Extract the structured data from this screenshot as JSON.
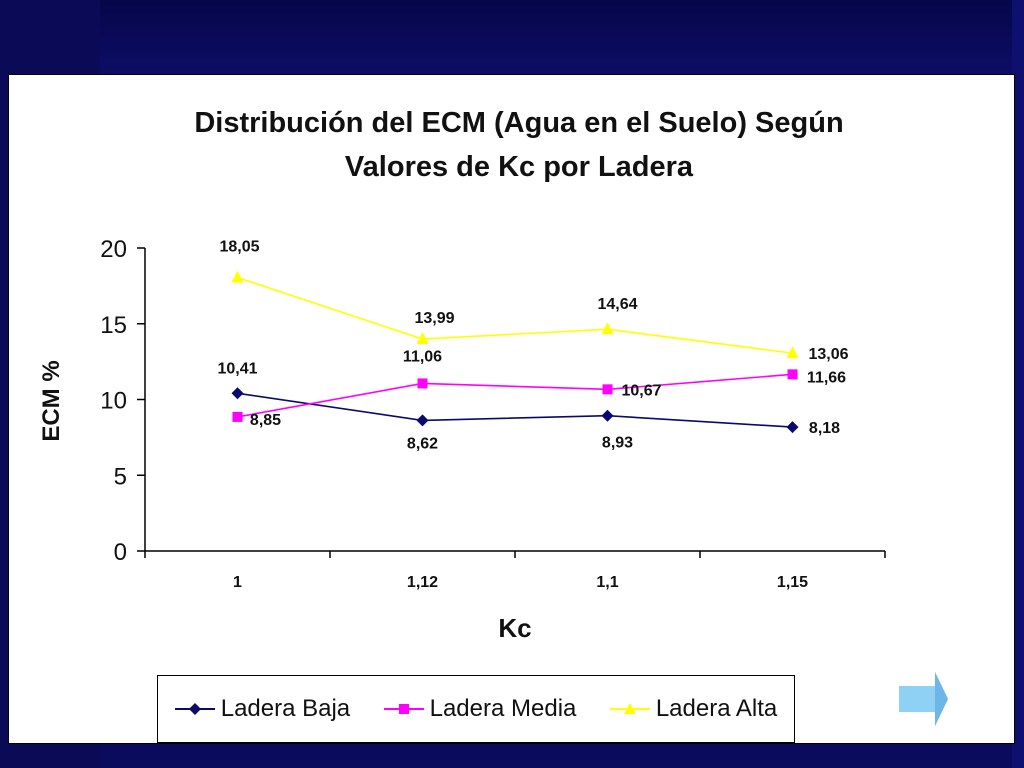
{
  "colors": {
    "slide_background": "#0b0b5e",
    "panel": "#ffffff",
    "series_baja": "#0a0a6e",
    "series_media": "#ff00ff",
    "series_alta": "#ffff00",
    "nav_arrow": "#8fd0f5"
  },
  "chart_data": {
    "type": "line",
    "title": "Distribución del ECM (Agua en el Suelo) Según Valores de Kc por Ladera",
    "title_lines": [
      "Distribución del ECM (Agua en el Suelo) Según",
      "Valores de Kc por Ladera"
    ],
    "xlabel": "Kc",
    "ylabel": "ECM %",
    "categories": [
      "1",
      "1,12",
      "1,1",
      "1,15"
    ],
    "ylim": [
      0,
      20
    ],
    "yticks": [
      "0",
      "5",
      "10",
      "15",
      "20"
    ],
    "grid": false,
    "legend_position": "bottom",
    "series": [
      {
        "name": "Ladera Baja",
        "values": [
          10.41,
          8.62,
          8.93,
          8.18
        ],
        "labels": [
          "10,41",
          "8,62",
          "8,93",
          "8,18"
        ],
        "marker": "diamond"
      },
      {
        "name": "Ladera Media",
        "values": [
          8.85,
          11.06,
          10.67,
          11.66
        ],
        "labels": [
          "8,85",
          "11,06",
          "10,67",
          "11,66"
        ],
        "marker": "square"
      },
      {
        "name": "Ladera Alta",
        "values": [
          18.05,
          13.99,
          14.64,
          13.06
        ],
        "labels": [
          "18,05",
          "13,99",
          "14,64",
          "13,06"
        ],
        "marker": "triangle"
      }
    ]
  },
  "nav": {
    "icon": "arrow-right-icon"
  }
}
